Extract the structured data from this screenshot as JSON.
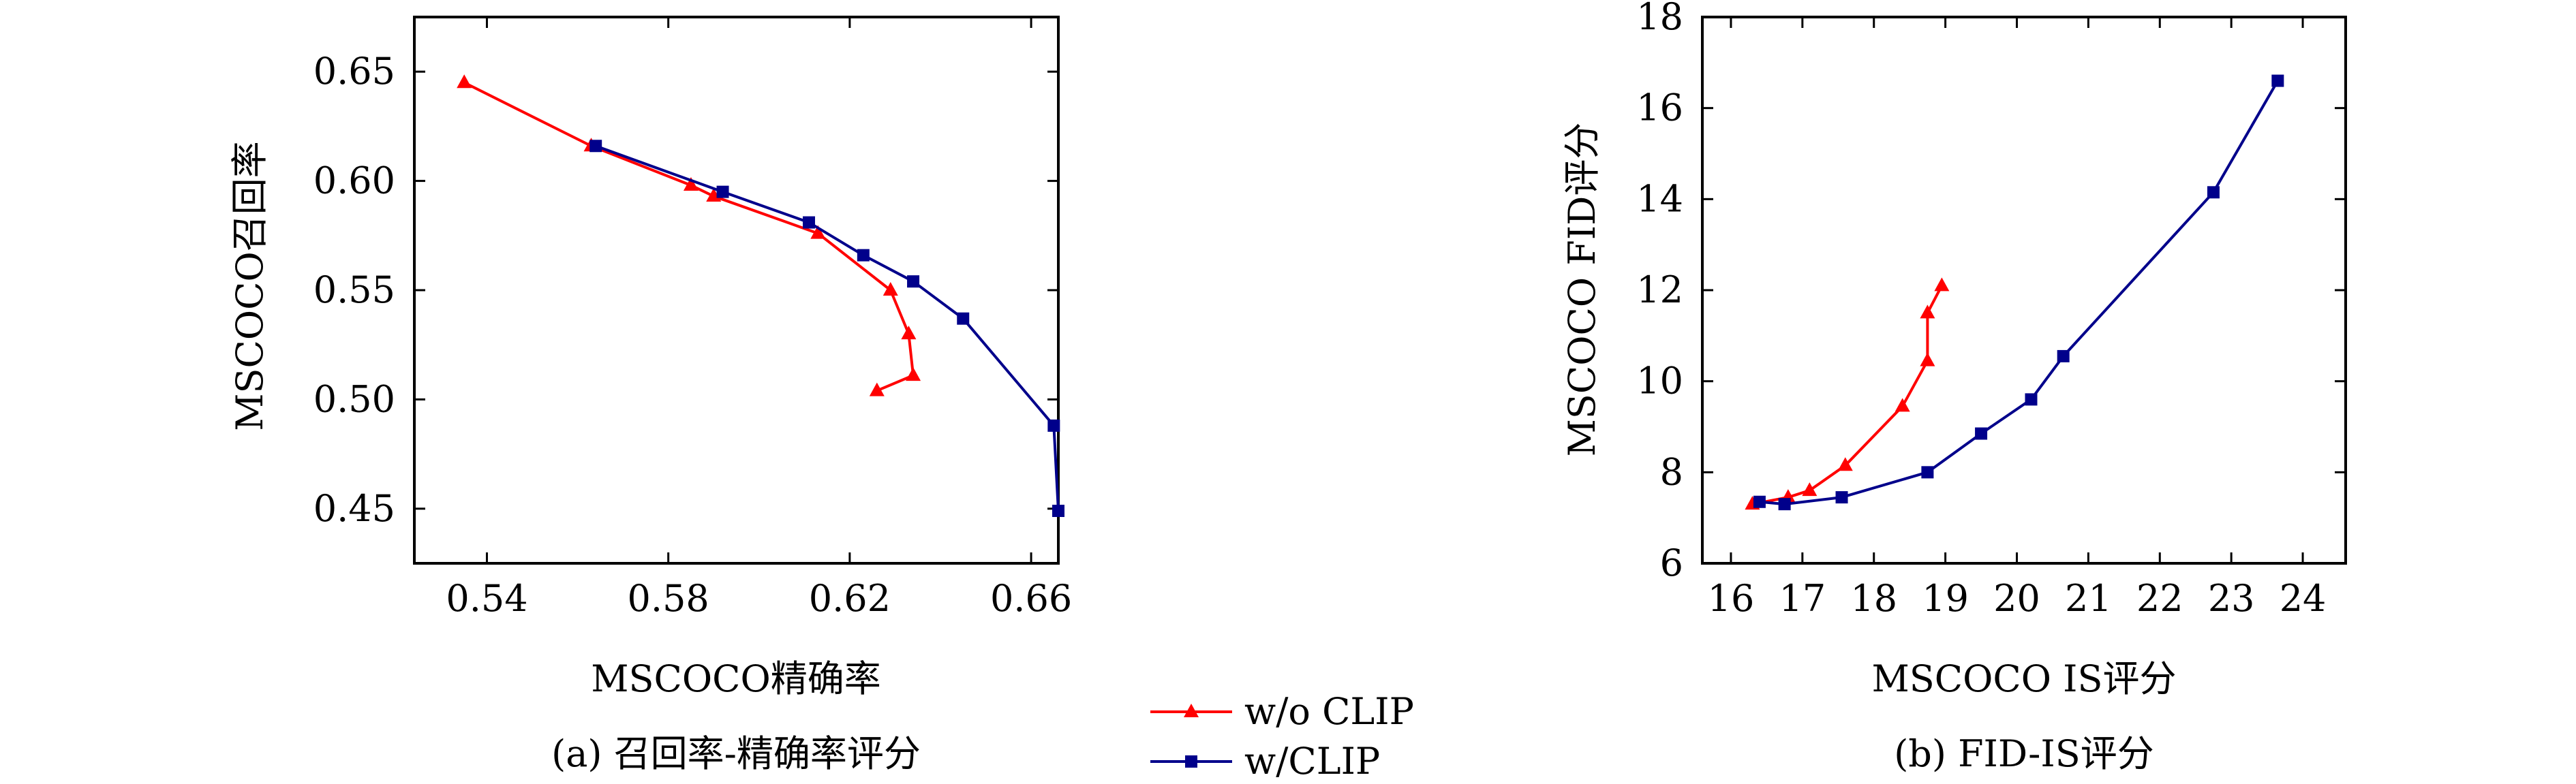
{
  "chart_data": [
    {
      "type": "line",
      "xlabel": "MSCOCO精确率",
      "ylabel": "MSCOCO召回率",
      "caption": "(a) 召回率-精确率评分",
      "xlim": [
        0.524,
        0.666
      ],
      "ylim": [
        0.425,
        0.675
      ],
      "xticks": [
        0.54,
        0.58,
        0.62,
        0.66
      ],
      "xtick_labels": [
        "0.54",
        "0.58",
        "0.62",
        "0.66"
      ],
      "yticks": [
        0.45,
        0.5,
        0.55,
        0.6,
        0.65
      ],
      "ytick_labels": [
        "0.45",
        "0.50",
        "0.55",
        "0.60",
        "0.65"
      ],
      "grid": false,
      "series": [
        {
          "name": "w/o CLIP",
          "color": "#ff0000",
          "marker": "triangle",
          "points": [
            [
              0.535,
              0.645
            ],
            [
              0.563,
              0.616
            ],
            [
              0.585,
              0.598
            ],
            [
              0.59,
              0.593
            ],
            [
              0.613,
              0.576
            ],
            [
              0.629,
              0.55
            ],
            [
              0.633,
              0.53
            ],
            [
              0.634,
              0.511
            ],
            [
              0.626,
              0.504
            ]
          ]
        },
        {
          "name": "w/CLIP",
          "color": "#00008b",
          "marker": "square",
          "points": [
            [
              0.564,
              0.616
            ],
            [
              0.592,
              0.595
            ],
            [
              0.611,
              0.581
            ],
            [
              0.623,
              0.566
            ],
            [
              0.634,
              0.554
            ],
            [
              0.645,
              0.537
            ],
            [
              0.665,
              0.488
            ],
            [
              0.666,
              0.449
            ]
          ]
        }
      ]
    },
    {
      "type": "line",
      "xlabel": "MSCOCO IS评分",
      "ylabel": "MSCOCO FID评分",
      "caption": "(b) FID-IS评分",
      "xlim": [
        15.6,
        24.6
      ],
      "ylim": [
        6,
        18
      ],
      "xticks": [
        16,
        17,
        18,
        19,
        20,
        21,
        22,
        23,
        24
      ],
      "xtick_labels": [
        "16",
        "17",
        "18",
        "19",
        "20",
        "21",
        "22",
        "23",
        "24"
      ],
      "yticks": [
        6,
        8,
        10,
        12,
        14,
        16,
        18
      ],
      "ytick_labels": [
        "6",
        "8",
        "10",
        "12",
        "14",
        "16",
        "18"
      ],
      "grid": false,
      "series": [
        {
          "name": "w/o CLIP",
          "color": "#ff0000",
          "marker": "triangle",
          "points": [
            [
              16.3,
              7.3
            ],
            [
              16.8,
              7.45
            ],
            [
              17.1,
              7.6
            ],
            [
              17.6,
              8.15
            ],
            [
              18.4,
              9.45
            ],
            [
              18.75,
              10.45
            ],
            [
              18.75,
              11.5
            ],
            [
              18.95,
              12.1
            ]
          ]
        },
        {
          "name": "w/CLIP",
          "color": "#00008b",
          "marker": "square",
          "points": [
            [
              16.4,
              7.35
            ],
            [
              16.75,
              7.3
            ],
            [
              17.55,
              7.45
            ],
            [
              18.75,
              8.0
            ],
            [
              19.5,
              8.85
            ],
            [
              20.2,
              9.6
            ],
            [
              20.65,
              10.55
            ],
            [
              22.75,
              14.15
            ],
            [
              23.65,
              16.6
            ]
          ]
        }
      ]
    }
  ],
  "legend": {
    "placement": "bottom-center",
    "entries": [
      {
        "label": "w/o CLIP",
        "color": "#ff0000",
        "marker": "triangle"
      },
      {
        "label": "w/CLIP",
        "color": "#00008b",
        "marker": "square"
      }
    ]
  }
}
